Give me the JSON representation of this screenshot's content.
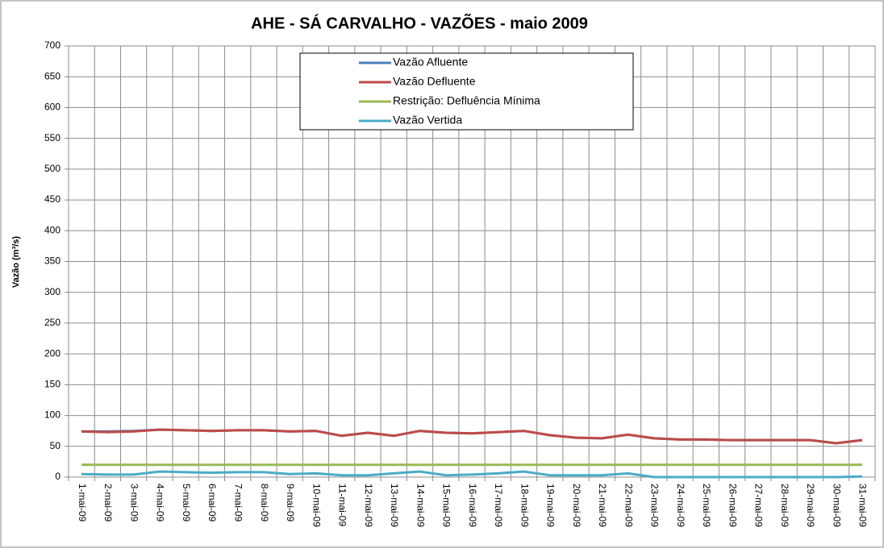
{
  "chart_data": {
    "type": "line",
    "title": "AHE - SÁ CARVALHO - VAZÕES - maio 2009",
    "y_label": "Vazão (m³/s)",
    "categories": [
      "1-mai-09",
      "2-mai-09",
      "3-mai-09",
      "4-mai-09",
      "5-mai-09",
      "6-mai-09",
      "7-mai-09",
      "8-mai-09",
      "9-mai-09",
      "10-mai-09",
      "11-mai-09",
      "12-mai-09",
      "13-mai-09",
      "14-mai-09",
      "15-mai-09",
      "16-mai-09",
      "17-mai-09",
      "18-mai-09",
      "19-mai-09",
      "20-mai-09",
      "21-mai-09",
      "22-mai-09",
      "23-mai-09",
      "24-mai-09",
      "25-mai-09",
      "26-mai-09",
      "27-mai-09",
      "28-mai-09",
      "29-mai-09",
      "30-mai-09",
      "31-mai-09"
    ],
    "series": [
      {
        "name": "Vazão Afluente",
        "color": "#4a7ebb",
        "values": [
          74,
          74,
          75,
          77,
          76,
          75,
          76,
          76,
          74,
          75,
          67,
          72,
          67,
          75,
          72,
          71,
          73,
          75,
          68,
          64,
          63,
          69,
          63,
          61,
          61,
          60,
          60,
          60,
          60,
          55,
          60
        ]
      },
      {
        "name": "Vazão Defluente",
        "color": "#be4b48",
        "values": [
          74,
          73,
          74,
          77,
          76,
          75,
          76,
          76,
          74,
          75,
          67,
          72,
          67,
          75,
          72,
          71,
          73,
          75,
          68,
          64,
          63,
          69,
          63,
          61,
          61,
          60,
          60,
          60,
          60,
          55,
          60
        ]
      },
      {
        "name": "Restrição: Defluência Mínima",
        "color": "#98b954",
        "values": [
          20,
          20,
          20,
          20,
          20,
          20,
          20,
          20,
          20,
          20,
          20,
          20,
          20,
          20,
          20,
          20,
          20,
          20,
          20,
          20,
          20,
          20,
          20,
          20,
          20,
          20,
          20,
          20,
          20,
          20,
          20
        ]
      },
      {
        "name": "Vazão Vertida",
        "color": "#4bacc6",
        "values": [
          5,
          4,
          4,
          9,
          8,
          7,
          8,
          8,
          5,
          6,
          3,
          3,
          6,
          9,
          3,
          4,
          6,
          9,
          3,
          3,
          3,
          6,
          0,
          0,
          0,
          0,
          0,
          0,
          0,
          0,
          1
        ]
      }
    ],
    "ylim": [
      0,
      700
    ],
    "yticks": [
      0,
      50,
      100,
      150,
      200,
      250,
      300,
      350,
      400,
      450,
      500,
      550,
      600,
      650,
      700
    ],
    "grid": true
  }
}
